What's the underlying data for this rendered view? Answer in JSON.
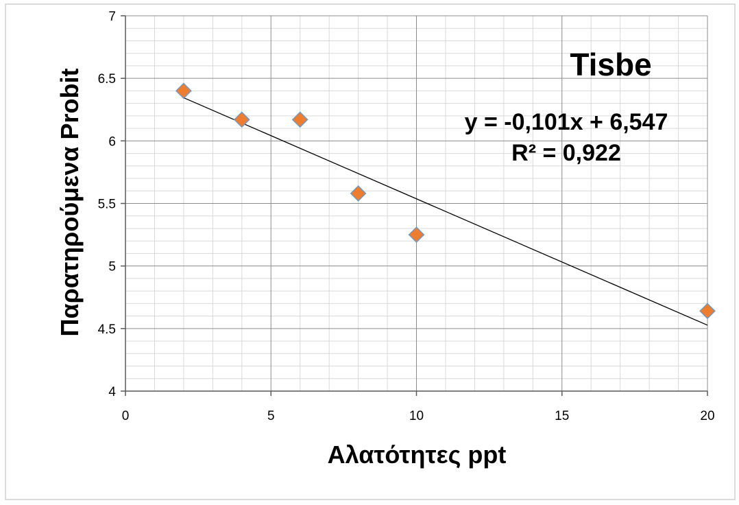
{
  "chart_data": {
    "type": "scatter",
    "title": "Tisbe",
    "xlabel": "Αλατότητες ppt",
    "ylabel": "Παρατηρούμενα Probit",
    "xlim": [
      0,
      20
    ],
    "ylim": [
      4,
      7
    ],
    "x_ticks": [
      "0",
      "5",
      "10",
      "15",
      "20"
    ],
    "y_ticks": [
      "4",
      "4.5",
      "5",
      "5.5",
      "6",
      "6.5",
      "7"
    ],
    "x_tick_values": [
      0,
      5,
      10,
      15,
      20
    ],
    "y_tick_values": [
      4,
      4.5,
      5,
      5.5,
      6,
      6.5,
      7
    ],
    "grid": true,
    "marker_color": "#ED7D31",
    "marker_edge_color": "#5B9BD5",
    "trendline_color": "#000000",
    "series": [
      {
        "x": [
          2,
          4,
          6,
          8,
          10,
          20
        ],
        "y": [
          6.4,
          6.17,
          6.17,
          5.58,
          5.25,
          4.64
        ]
      }
    ],
    "trendline": {
      "slope": -0.101,
      "intercept": 6.547,
      "x_range": [
        2,
        20
      ],
      "equation_label": "y = -0,101x + 6,547",
      "r2_label": "R² = 0,922"
    }
  }
}
